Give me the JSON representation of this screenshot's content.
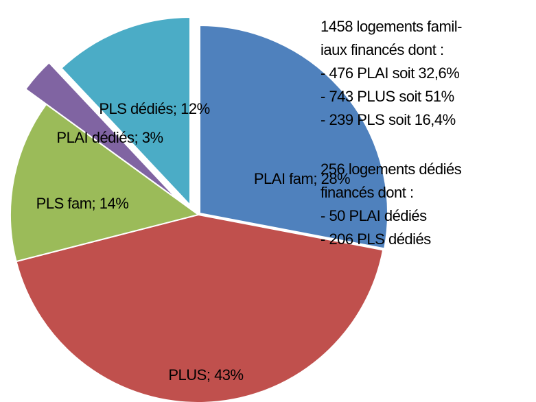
{
  "chart_data": {
    "type": "pie",
    "categories": [
      "PLAI fam",
      "PLUS",
      "PLS fam",
      "PLAI dédiés",
      "PLS dédiés"
    ],
    "values": [
      28,
      43,
      14,
      3,
      12
    ],
    "value_labels": [
      "PLAI fam; 28%",
      "PLUS; 43%",
      "PLS fam; 14%",
      "PLAI dédiés; 3%",
      "PLS dédiés; 12%"
    ],
    "colors": [
      "#4f81bd",
      "#c0504d",
      "#9bbb59",
      "#8064a2",
      "#4bacc6"
    ],
    "annotations": [
      [
        "1458 logements famil-",
        "iaux financés dont :",
        "- 476 PLAI soit 32,6%",
        "- 743 PLUS soit 51%",
        "- 239 PLS soit 16,4%"
      ],
      [
        "256 logements dédiés",
        "financés dont :",
        "- 50 PLAI dédiés",
        "- 206 PLS dédiés"
      ]
    ]
  }
}
